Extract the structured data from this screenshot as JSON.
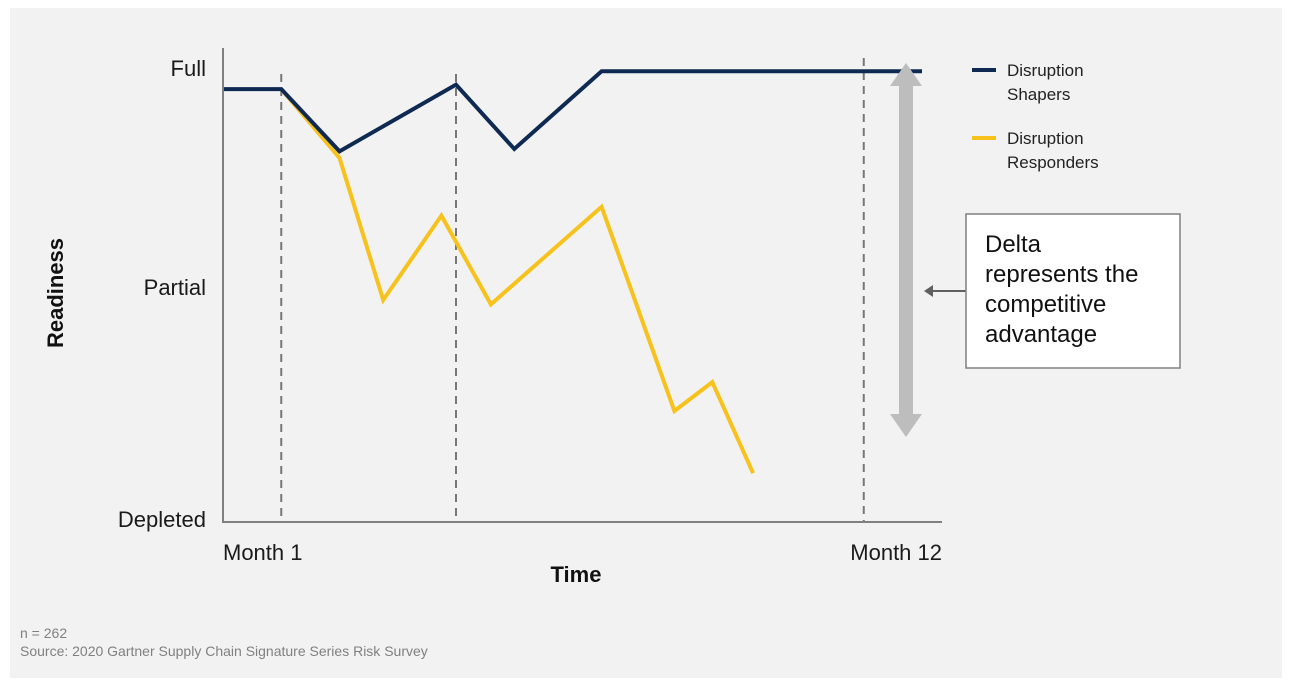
{
  "chart_data": {
    "type": "line",
    "xlabel": "Time",
    "ylabel": "Readiness",
    "x_tick_labels": [
      "Month 1",
      "Month 12"
    ],
    "y_tick_labels": [
      "Depleted",
      "Partial",
      "Full"
    ],
    "y_ticks": [
      0,
      1,
      2
    ],
    "xlim": [
      0,
      12
    ],
    "ylim": [
      0,
      2
    ],
    "reference_months": [
      1,
      4,
      11
    ],
    "series": [
      {
        "name": "Disruption Shapers",
        "color": "#0f2a52",
        "points": [
          [
            0,
            1.95
          ],
          [
            1,
            1.95
          ],
          [
            2,
            1.67
          ],
          [
            4,
            1.97
          ],
          [
            5,
            1.68
          ],
          [
            6.5,
            2.03
          ],
          [
            12,
            2.03
          ]
        ]
      },
      {
        "name": "Disruption Responders",
        "color": "#f6c21b",
        "points": [
          [
            1,
            1.95
          ],
          [
            2,
            1.64
          ],
          [
            2.75,
            1.0
          ],
          [
            3.75,
            1.38
          ],
          [
            4.6,
            0.98
          ],
          [
            6.5,
            1.42
          ],
          [
            7.75,
            0.5
          ],
          [
            8.4,
            0.63
          ],
          [
            9.1,
            0.22
          ]
        ]
      }
    ],
    "annotation": {
      "lines": [
        "Delta",
        "represents the",
        "competitive",
        "advantage"
      ],
      "color": "#bdbdbd"
    },
    "grid": false,
    "legend_position": "top-right"
  },
  "notes": {
    "n": "n = 262",
    "source": "Source: 2020 Gartner Supply Chain Signature Series Risk Survey"
  }
}
